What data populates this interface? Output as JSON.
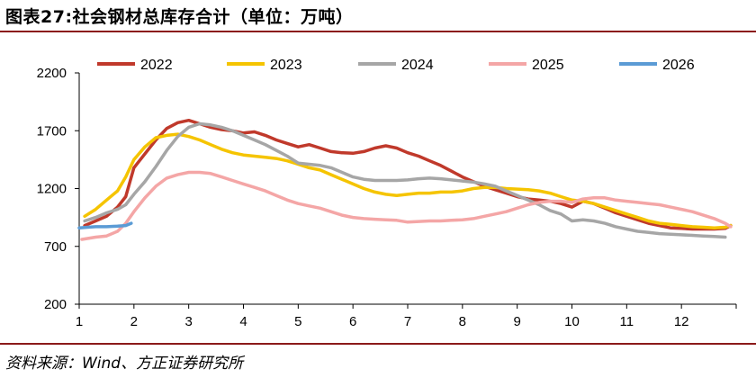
{
  "title": "图表27:社会钢材总库存合计（单位：万吨）",
  "source": "资料来源：Wind、方正证券研究所",
  "chart_data": {
    "type": "line",
    "title": "图表27:社会钢材总库存合计（单位：万吨）",
    "xlabel": "",
    "ylabel": "",
    "xlim": [
      1,
      13
    ],
    "ylim": [
      200,
      2200
    ],
    "yticks": [
      200,
      700,
      1200,
      1700,
      2200
    ],
    "xticks": [
      1,
      2,
      3,
      4,
      5,
      6,
      7,
      8,
      9,
      10,
      11,
      12
    ],
    "grid": false,
    "legend_position": "top",
    "series": [
      {
        "name": "2022",
        "color": "#c0392b",
        "x": [
          1.1,
          1.3,
          1.5,
          1.7,
          1.85,
          2.0,
          2.2,
          2.4,
          2.6,
          2.8,
          3.0,
          3.2,
          3.4,
          3.6,
          3.8,
          4.0,
          4.2,
          4.4,
          4.6,
          4.8,
          5.0,
          5.2,
          5.4,
          5.6,
          5.8,
          6.0,
          6.2,
          6.4,
          6.6,
          6.8,
          7.0,
          7.2,
          7.4,
          7.6,
          7.8,
          8.0,
          8.2,
          8.4,
          8.6,
          8.8,
          9.0,
          9.2,
          9.4,
          9.6,
          9.8,
          10.0,
          10.2,
          10.4,
          10.6,
          10.8,
          11.0,
          11.2,
          11.4,
          11.6,
          11.8,
          12.0,
          12.2,
          12.4,
          12.6,
          12.8,
          12.9
        ],
        "y": [
          880,
          920,
          960,
          1040,
          1130,
          1380,
          1500,
          1620,
          1720,
          1770,
          1790,
          1760,
          1730,
          1710,
          1700,
          1680,
          1690,
          1660,
          1620,
          1590,
          1560,
          1580,
          1550,
          1520,
          1510,
          1505,
          1520,
          1550,
          1570,
          1550,
          1510,
          1480,
          1440,
          1400,
          1350,
          1300,
          1260,
          1220,
          1190,
          1160,
          1130,
          1110,
          1100,
          1090,
          1070,
          1040,
          1090,
          1070,
          1030,
          990,
          960,
          930,
          900,
          880,
          860,
          855,
          850,
          850,
          850,
          855,
          880
        ]
      },
      {
        "name": "2023",
        "color": "#f5c400",
        "x": [
          1.1,
          1.3,
          1.5,
          1.7,
          1.85,
          2.0,
          2.2,
          2.4,
          2.6,
          2.8,
          3.0,
          3.2,
          3.4,
          3.6,
          3.8,
          4.0,
          4.2,
          4.4,
          4.6,
          4.8,
          5.0,
          5.2,
          5.4,
          5.6,
          5.8,
          6.0,
          6.2,
          6.4,
          6.6,
          6.8,
          7.0,
          7.2,
          7.4,
          7.6,
          7.8,
          8.0,
          8.2,
          8.4,
          8.6,
          8.8,
          9.0,
          9.2,
          9.4,
          9.6,
          9.8,
          10.0,
          10.2,
          10.4,
          10.6,
          10.8,
          11.0,
          11.2,
          11.4,
          11.6,
          11.8,
          12.0,
          12.2,
          12.4,
          12.6,
          12.8,
          12.9
        ],
        "y": [
          960,
          1020,
          1100,
          1180,
          1300,
          1450,
          1560,
          1640,
          1660,
          1670,
          1650,
          1620,
          1580,
          1540,
          1510,
          1490,
          1480,
          1470,
          1460,
          1440,
          1410,
          1380,
          1360,
          1320,
          1280,
          1240,
          1200,
          1170,
          1150,
          1140,
          1150,
          1160,
          1160,
          1170,
          1170,
          1180,
          1200,
          1210,
          1210,
          1200,
          1195,
          1190,
          1180,
          1160,
          1130,
          1100,
          1090,
          1070,
          1040,
          1010,
          980,
          950,
          920,
          900,
          890,
          880,
          870,
          865,
          860,
          865,
          880
        ]
      },
      {
        "name": "2024",
        "color": "#a6a6a6",
        "x": [
          1.1,
          1.3,
          1.5,
          1.7,
          1.85,
          2.0,
          2.2,
          2.4,
          2.6,
          2.8,
          3.0,
          3.2,
          3.4,
          3.6,
          3.8,
          4.0,
          4.2,
          4.4,
          4.6,
          4.8,
          5.0,
          5.2,
          5.4,
          5.6,
          5.8,
          6.0,
          6.2,
          6.4,
          6.6,
          6.8,
          7.0,
          7.2,
          7.4,
          7.6,
          7.8,
          8.0,
          8.2,
          8.4,
          8.6,
          8.8,
          9.0,
          9.2,
          9.4,
          9.6,
          9.8,
          10.0,
          10.2,
          10.4,
          10.6,
          10.8,
          11.0,
          11.2,
          11.4,
          11.6,
          11.8,
          12.0,
          12.2,
          12.4,
          12.6,
          12.8
        ],
        "y": [
          920,
          950,
          990,
          1020,
          1060,
          1150,
          1260,
          1390,
          1530,
          1650,
          1730,
          1760,
          1750,
          1730,
          1700,
          1660,
          1620,
          1580,
          1530,
          1480,
          1420,
          1410,
          1400,
          1380,
          1340,
          1300,
          1280,
          1270,
          1270,
          1270,
          1275,
          1285,
          1290,
          1285,
          1275,
          1265,
          1255,
          1240,
          1220,
          1180,
          1140,
          1100,
          1060,
          1010,
          980,
          920,
          930,
          920,
          900,
          870,
          850,
          830,
          820,
          810,
          805,
          800,
          795,
          790,
          785,
          780
        ]
      },
      {
        "name": "2025",
        "color": "#f4a6a6",
        "x": [
          1.05,
          1.3,
          1.5,
          1.7,
          1.85,
          2.0,
          2.2,
          2.4,
          2.6,
          2.8,
          3.0,
          3.2,
          3.4,
          3.6,
          3.8,
          4.0,
          4.2,
          4.4,
          4.6,
          4.8,
          5.0,
          5.2,
          5.4,
          5.6,
          5.8,
          6.0,
          6.2,
          6.4,
          6.6,
          6.8,
          7.0,
          7.2,
          7.4,
          7.6,
          7.8,
          8.0,
          8.2,
          8.4,
          8.6,
          8.8,
          9.0,
          9.2,
          9.4,
          9.6,
          9.8,
          10.0,
          10.2,
          10.4,
          10.6,
          10.8,
          11.0,
          11.2,
          11.4,
          11.6,
          11.8,
          12.0,
          12.2,
          12.4,
          12.6,
          12.8,
          12.9
        ],
        "y": [
          760,
          780,
          790,
          830,
          900,
          1000,
          1120,
          1220,
          1290,
          1320,
          1340,
          1340,
          1330,
          1300,
          1270,
          1240,
          1210,
          1180,
          1140,
          1100,
          1070,
          1050,
          1030,
          1000,
          970,
          950,
          940,
          935,
          930,
          925,
          910,
          915,
          920,
          920,
          925,
          930,
          940,
          960,
          980,
          1000,
          1030,
          1060,
          1080,
          1090,
          1090,
          1080,
          1110,
          1120,
          1120,
          1100,
          1090,
          1080,
          1070,
          1060,
          1040,
          1020,
          1000,
          970,
          940,
          900,
          870
        ]
      },
      {
        "name": "2026",
        "color": "#5b9bd5",
        "x": [
          1.0,
          1.15,
          1.3,
          1.5,
          1.7,
          1.85,
          1.95
        ],
        "y": [
          860,
          865,
          870,
          870,
          875,
          880,
          900
        ]
      }
    ]
  }
}
